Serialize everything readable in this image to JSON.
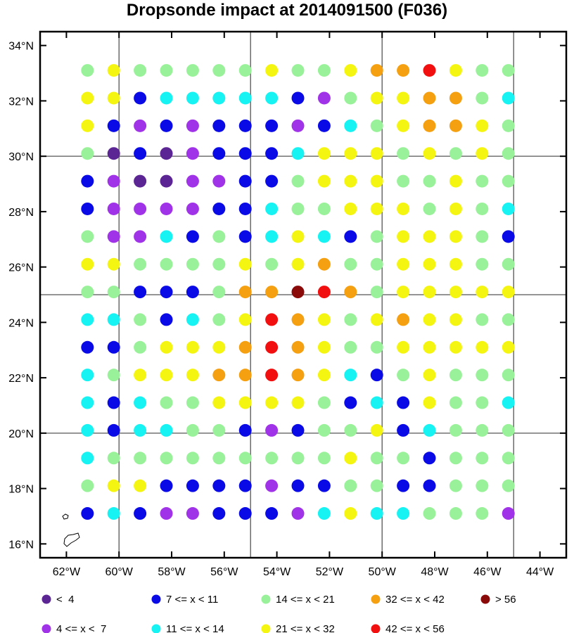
{
  "title": "Dropsonde impact at 2014091500 (F036)",
  "chart_data": {
    "type": "scatter",
    "xlim": [
      -63,
      -43
    ],
    "ylim": [
      15.5,
      34.5
    ],
    "x_ticks": [
      -62,
      -60,
      -58,
      -56,
      -54,
      -52,
      -50,
      -48,
      -46,
      -44
    ],
    "y_ticks": [
      16,
      18,
      20,
      22,
      24,
      26,
      28,
      30,
      32,
      34
    ],
    "x_tick_labels": [
      "62°W",
      "60°W",
      "58°W",
      "56°W",
      "54°W",
      "52°W",
      "50°W",
      "48°W",
      "46°W",
      "44°W"
    ],
    "y_tick_labels": [
      "16°N",
      "18°N",
      "20°N",
      "22°N",
      "24°N",
      "26°N",
      "28°N",
      "30°N",
      "32°N",
      "34°N"
    ],
    "grid": {
      "lon": [
        -60,
        -55,
        -50,
        -45
      ],
      "lat": [
        20,
        25,
        30
      ]
    },
    "lons": [
      -61.2,
      -60.2,
      -59.2,
      -58.2,
      -57.2,
      -56.2,
      -55.2,
      -54.2,
      -53.2,
      -52.2,
      -51.2,
      -50.2,
      -49.2,
      -48.2,
      -47.2,
      -46.2,
      -45.2
    ],
    "lats": [
      33.1,
      32.1,
      31.1,
      30.1,
      29.1,
      28.1,
      27.1,
      26.1,
      25.1,
      24.1,
      23.1,
      22.1,
      21.1,
      20.1,
      19.1,
      18.1,
      17.1
    ],
    "categories": [
      {
        "label": "<  4",
        "color": "#5b2594"
      },
      {
        "label": "4 <= x <  7",
        "color": "#a033e8"
      },
      {
        "label": "7 <= x < 11",
        "color": "#0a0ae6"
      },
      {
        "label": "11 <= x < 14",
        "color": "#17f2f2"
      },
      {
        "label": "14 <= x < 21",
        "color": "#99f299"
      },
      {
        "label": "21 <= x < 32",
        "color": "#f5f512"
      },
      {
        "label": "32 <= x < 42",
        "color": "#f5a010"
      },
      {
        "label": "42 <= x < 56",
        "color": "#f20f0f"
      },
      {
        "label": "> 56",
        "color": "#8a0a0a"
      }
    ],
    "legend_order": [
      0,
      2,
      4,
      6,
      8,
      1,
      3,
      5,
      7
    ],
    "category_grid": [
      [
        4,
        5,
        4,
        4,
        4,
        4,
        4,
        5,
        4,
        4,
        5,
        6,
        6,
        7,
        5,
        4,
        4
      ],
      [
        5,
        5,
        2,
        3,
        3,
        3,
        3,
        3,
        2,
        1,
        4,
        5,
        5,
        6,
        6,
        4,
        3
      ],
      [
        5,
        2,
        1,
        2,
        1,
        2,
        2,
        2,
        1,
        2,
        3,
        4,
        5,
        6,
        6,
        5,
        4
      ],
      [
        4,
        0,
        2,
        0,
        1,
        2,
        2,
        2,
        3,
        5,
        5,
        5,
        4,
        5,
        4,
        5,
        4
      ],
      [
        2,
        1,
        0,
        0,
        1,
        1,
        2,
        2,
        4,
        5,
        5,
        5,
        4,
        4,
        5,
        4,
        4
      ],
      [
        2,
        1,
        1,
        1,
        1,
        2,
        2,
        3,
        4,
        4,
        5,
        5,
        5,
        4,
        5,
        4,
        3
      ],
      [
        4,
        1,
        1,
        3,
        2,
        4,
        2,
        3,
        5,
        3,
        2,
        4,
        5,
        5,
        5,
        4,
        2
      ],
      [
        5,
        5,
        4,
        4,
        4,
        4,
        5,
        4,
        5,
        6,
        4,
        4,
        5,
        5,
        5,
        4,
        4
      ],
      [
        4,
        4,
        2,
        2,
        2,
        4,
        6,
        6,
        8,
        7,
        6,
        4,
        5,
        5,
        5,
        5,
        5
      ],
      [
        3,
        3,
        4,
        2,
        3,
        4,
        5,
        7,
        6,
        5,
        4,
        5,
        6,
        5,
        5,
        4,
        4
      ],
      [
        2,
        2,
        4,
        5,
        5,
        5,
        6,
        7,
        6,
        5,
        4,
        4,
        5,
        5,
        5,
        5,
        5
      ],
      [
        3,
        4,
        5,
        5,
        5,
        6,
        6,
        7,
        6,
        5,
        3,
        2,
        4,
        5,
        4,
        4,
        4
      ],
      [
        3,
        2,
        3,
        4,
        4,
        5,
        5,
        5,
        5,
        4,
        2,
        3,
        2,
        5,
        4,
        4,
        3
      ],
      [
        3,
        2,
        3,
        3,
        4,
        4,
        2,
        1,
        2,
        4,
        4,
        5,
        2,
        3,
        4,
        4,
        4
      ],
      [
        3,
        4,
        4,
        4,
        4,
        4,
        4,
        4,
        4,
        4,
        5,
        4,
        4,
        2,
        4,
        4,
        4
      ],
      [
        4,
        5,
        5,
        2,
        2,
        2,
        2,
        1,
        2,
        2,
        4,
        4,
        2,
        2,
        4,
        4,
        4
      ],
      [
        2,
        3,
        2,
        1,
        1,
        2,
        2,
        2,
        1,
        3,
        5,
        3,
        3,
        4,
        4,
        4,
        1
      ]
    ]
  }
}
